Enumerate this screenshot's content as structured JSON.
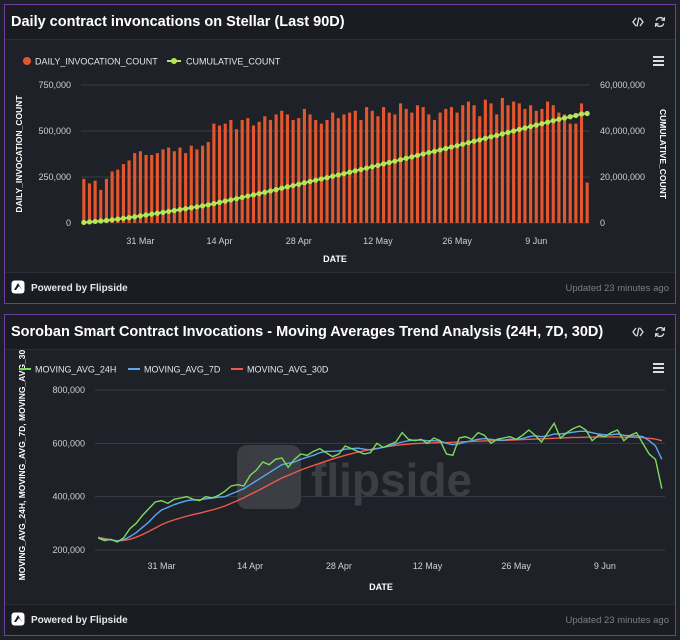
{
  "footer": {
    "powered_by": "Powered by Flipside",
    "updated": "Updated 23 minutes ago"
  },
  "watermark": "flipside",
  "card1": {
    "title": "Daily contract invoncations on Stellar (Last 90D)"
  },
  "card2": {
    "title": "Soroban Smart Contract Invocations - Moving Averages Trend Analysis (24H, 7D, 30D)"
  },
  "colors": {
    "bar": "#e4572e",
    "cumulative": "#b5e655",
    "avg24h": "#7ddc5a",
    "avg7d": "#5aa9f2",
    "avg30d": "#ef5a4b",
    "frame": "#6b3fa0"
  },
  "chart_data": [
    {
      "type": "bar",
      "title": "Daily contract invoncations on Stellar (Last 90D)",
      "xlabel": "DATE",
      "ylabel": "DAILY_INVOCATION_COUNT",
      "y2label": "CUMULATIVE_COUNT",
      "ylim": [
        0,
        750000
      ],
      "y2lim": [
        0,
        60000000
      ],
      "yticks": [
        "0",
        "250,000",
        "500,000",
        "750,000"
      ],
      "y2ticks": [
        "0",
        "20,000,000",
        "40,000,000",
        "60,000,000"
      ],
      "xticks": [
        {
          "label": "31 Mar",
          "day": 10
        },
        {
          "label": "14 Apr",
          "day": 24
        },
        {
          "label": "28 Apr",
          "day": 38
        },
        {
          "label": "12 May",
          "day": 52
        },
        {
          "label": "26 May",
          "day": 66
        },
        {
          "label": "9 Jun",
          "day": 80
        }
      ],
      "legend_position": "top-left",
      "series": [
        {
          "name": "DAILY_INVOCATION_COUNT",
          "type": "bar",
          "values": [
            240000,
            215000,
            230000,
            180000,
            240000,
            280000,
            290000,
            320000,
            340000,
            380000,
            390000,
            370000,
            370000,
            380000,
            400000,
            410000,
            390000,
            410000,
            380000,
            420000,
            400000,
            420000,
            440000,
            540000,
            530000,
            540000,
            560000,
            510000,
            560000,
            570000,
            530000,
            550000,
            580000,
            560000,
            590000,
            610000,
            590000,
            560000,
            570000,
            620000,
            590000,
            560000,
            540000,
            560000,
            600000,
            570000,
            590000,
            600000,
            610000,
            560000,
            630000,
            610000,
            580000,
            630000,
            600000,
            590000,
            650000,
            620000,
            600000,
            640000,
            630000,
            590000,
            560000,
            600000,
            620000,
            630000,
            600000,
            640000,
            660000,
            640000,
            580000,
            670000,
            650000,
            590000,
            680000,
            640000,
            660000,
            650000,
            620000,
            640000,
            610000,
            620000,
            660000,
            640000,
            600000,
            590000,
            540000,
            540000,
            650000,
            220000
          ]
        },
        {
          "name": "CUMULATIVE_COUNT",
          "type": "line",
          "values": [
            240000,
            455000,
            685000,
            865000,
            1105000,
            1385000,
            1675000,
            1995000,
            2335000,
            2715000,
            3105000,
            3475000,
            3845000,
            4225000,
            4625000,
            5035000,
            5425000,
            5835000,
            6215000,
            6635000,
            7035000,
            7455000,
            7895000,
            8435000,
            8965000,
            9505000,
            10065000,
            10575000,
            11135000,
            11705000,
            12235000,
            12785000,
            13365000,
            13925000,
            14515000,
            15125000,
            15715000,
            16275000,
            16845000,
            17465000,
            18055000,
            18615000,
            19155000,
            19715000,
            20315000,
            20885000,
            21475000,
            22075000,
            22685000,
            23245000,
            23875000,
            24485000,
            25065000,
            25695000,
            26295000,
            26885000,
            27535000,
            28155000,
            28755000,
            29395000,
            30025000,
            30615000,
            31175000,
            31775000,
            32395000,
            33025000,
            33625000,
            34265000,
            34925000,
            35565000,
            36145000,
            36815000,
            37465000,
            38055000,
            38735000,
            39375000,
            40035000,
            40685000,
            41305000,
            41945000,
            42555000,
            43175000,
            43835000,
            44475000,
            45075000,
            45665000,
            46205000,
            46745000,
            47395000,
            47615000
          ]
        }
      ]
    },
    {
      "type": "line",
      "title": "Soroban Smart Contract Invocations - Moving Averages Trend Analysis (24H, 7D, 30D)",
      "xlabel": "DATE",
      "ylabel": "MOVING_AVG_24H, MOVING_AVG_7D, MOVING_AVG_30D",
      "ylim": [
        200000,
        800000
      ],
      "yticks": [
        "200,000",
        "400,000",
        "600,000",
        "800,000"
      ],
      "xticks": [
        {
          "label": "31 Mar",
          "day": 10
        },
        {
          "label": "14 Apr",
          "day": 24
        },
        {
          "label": "28 Apr",
          "day": 38
        },
        {
          "label": "12 May",
          "day": 52
        },
        {
          "label": "26 May",
          "day": 66
        },
        {
          "label": "9 Jun",
          "day": 80
        }
      ],
      "legend_position": "top-left",
      "series": [
        {
          "name": "MOVING_AVG_24H",
          "values": [
            245000,
            235000,
            240000,
            230000,
            245000,
            280000,
            300000,
            330000,
            355000,
            380000,
            385000,
            375000,
            390000,
            395000,
            400000,
            390000,
            385000,
            400000,
            395000,
            405000,
            420000,
            440000,
            445000,
            440000,
            480000,
            500000,
            530000,
            520000,
            540000,
            545000,
            510000,
            540000,
            560000,
            555000,
            570000,
            580000,
            565000,
            550000,
            560000,
            590000,
            580000,
            570000,
            560000,
            565000,
            600000,
            585000,
            595000,
            605000,
            640000,
            615000,
            610000,
            615000,
            600000,
            620000,
            610000,
            560000,
            555000,
            620000,
            625000,
            615000,
            640000,
            630000,
            600000,
            615000,
            620000,
            625000,
            615000,
            630000,
            650000,
            630000,
            605000,
            640000,
            675000,
            620000,
            640000,
            655000,
            665000,
            650000,
            610000,
            630000,
            625000,
            640000,
            650000,
            610000,
            630000,
            640000,
            600000,
            560000,
            540000,
            430000
          ]
        },
        {
          "name": "MOVING_AVG_7D",
          "values": [
            245000,
            240000,
            238000,
            233000,
            238000,
            250000,
            265000,
            285000,
            305000,
            330000,
            350000,
            360000,
            370000,
            378000,
            385000,
            388000,
            388000,
            392000,
            395000,
            398000,
            400000,
            410000,
            420000,
            430000,
            445000,
            460000,
            475000,
            490000,
            505000,
            520000,
            525000,
            530000,
            540000,
            548000,
            555000,
            565000,
            570000,
            570000,
            572000,
            578000,
            580000,
            582000,
            578000,
            575000,
            580000,
            585000,
            590000,
            598000,
            605000,
            610000,
            612000,
            612000,
            610000,
            610000,
            608000,
            600000,
            595000,
            598000,
            605000,
            610000,
            615000,
            618000,
            615000,
            612000,
            612000,
            615000,
            615000,
            618000,
            625000,
            628000,
            625000,
            628000,
            635000,
            635000,
            638000,
            642000,
            645000,
            645000,
            640000,
            635000,
            632000,
            632000,
            635000,
            630000,
            628000,
            628000,
            625000,
            610000,
            590000,
            540000
          ]
        },
        {
          "name": "MOVING_AVG_30D",
          "values": [
            248000,
            243000,
            238000,
            235000,
            236000,
            240000,
            248000,
            258000,
            270000,
            282000,
            295000,
            305000,
            313000,
            320000,
            327000,
            333000,
            338000,
            344000,
            350000,
            357000,
            365000,
            375000,
            385000,
            396000,
            408000,
            420000,
            432000,
            445000,
            458000,
            470000,
            480000,
            490000,
            500000,
            509000,
            517000,
            525000,
            533000,
            541000,
            548000,
            555000,
            561000,
            567000,
            572000,
            577000,
            581000,
            585000,
            589000,
            592000,
            595000,
            597000,
            599000,
            600000,
            601000,
            602000,
            603000,
            603000,
            604000,
            605000,
            606000,
            607000,
            608000,
            609000,
            610000,
            611000,
            611000,
            612000,
            613000,
            614000,
            615000,
            616000,
            617000,
            618000,
            619000,
            620000,
            621000,
            622000,
            622000,
            623000,
            623000,
            624000,
            624000,
            624000,
            624000,
            623000,
            623000,
            622000,
            621000,
            619000,
            616000,
            610000
          ]
        }
      ]
    }
  ]
}
